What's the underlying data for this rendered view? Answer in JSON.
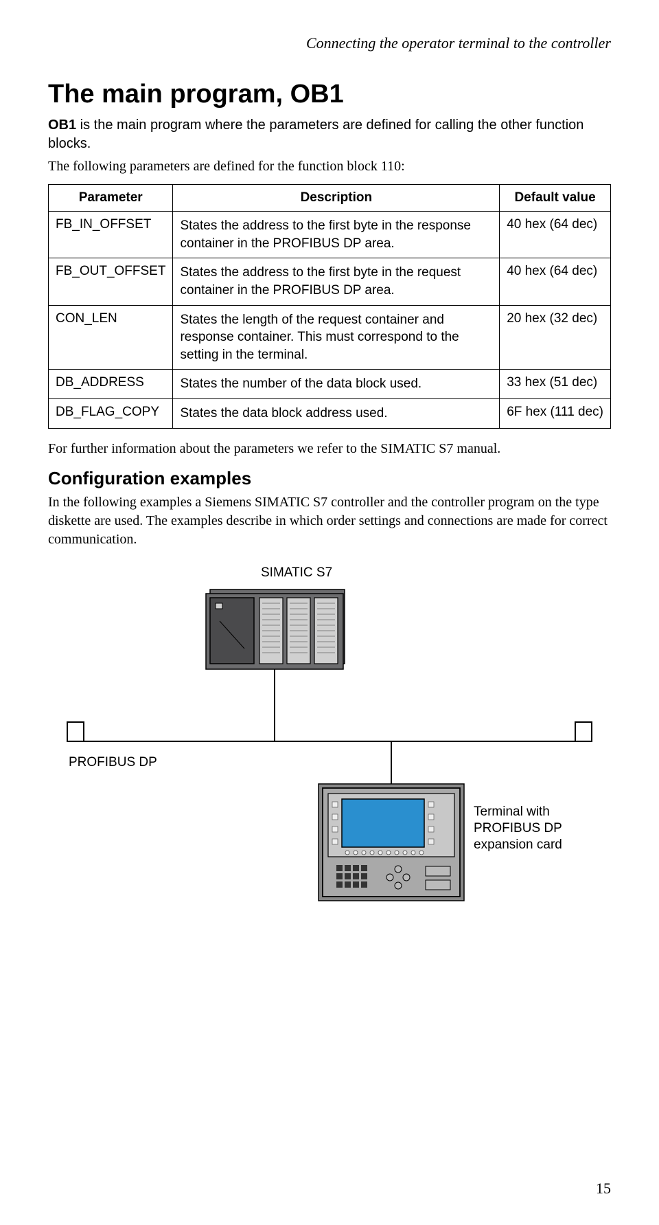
{
  "header": "Connecting the operator terminal to the controller",
  "title": "The main program, OB1",
  "intro_bold": "OB1",
  "intro_rest": " is the main program where the parameters are defined for calling the other function blocks.",
  "intro2": "The following parameters are defined for the function block 110:",
  "table": {
    "headers": [
      "Parameter",
      "Description",
      "Default value"
    ],
    "rows": [
      {
        "param": "FB_IN_OFFSET",
        "desc": "States the address to the first byte in the response container in the PROFIBUS DP area.",
        "def": "40 hex (64 dec)"
      },
      {
        "param": "FB_OUT_OFFSET",
        "desc": "States the address to the first byte in the request container in the PROFIBUS DP area.",
        "def": "40 hex (64 dec)"
      },
      {
        "param": "CON_LEN",
        "desc": "States the length of the request container and response container. This must correspond to the setting in the terminal.",
        "def": "20 hex (32 dec)"
      },
      {
        "param": "DB_ADDRESS",
        "desc": "States the number of the data block used.",
        "def": "33 hex (51 dec)"
      },
      {
        "param": "DB_FLAG_COPY",
        "desc": "States the data block address used.",
        "def": "6F hex (111 dec)"
      }
    ]
  },
  "after_table": "For further information about the parameters we refer to the SIMATIC S7 manual.",
  "h2": "Configuration examples",
  "examples_text": "In the following examples a Siemens SIMATIC S7 controller and the controller program on the type diskette are used. The examples describe in which order settings and connections are made for correct communication.",
  "diagram": {
    "label_top": "SIMATIC S7",
    "label_bus": "PROFIBUS DP",
    "label_terminal_1": "Terminal with",
    "label_terminal_2": "PROFIBUS DP",
    "label_terminal_3": "expansion card",
    "colors": {
      "plc_body": "#6c6c6e",
      "plc_module": "#999999",
      "plc_light": "#d0d0d0",
      "plc_outline": "#000000",
      "bus_line": "#000000",
      "terminator": "#ffffff",
      "terminal_body": "#a9a9a9",
      "terminal_screen": "#2a8fcf",
      "terminal_outline": "#000000"
    }
  },
  "page_number": "15"
}
